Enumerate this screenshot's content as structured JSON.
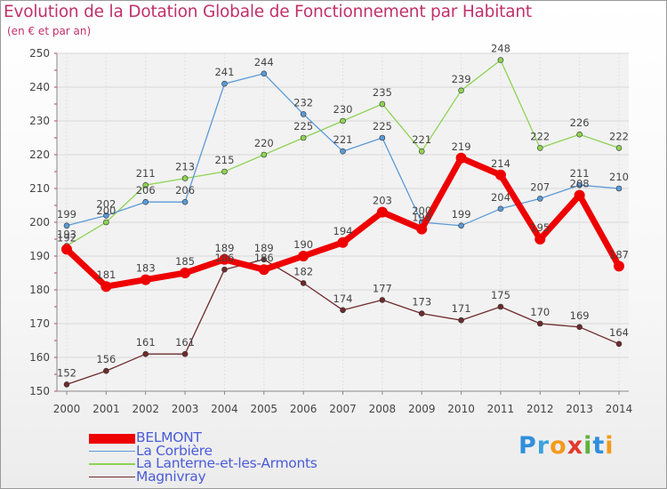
{
  "title": "Evolution de la Dotation Globale de Fonctionnement par Habitant",
  "subtitle": "(en € et par an)",
  "logo": {
    "text": "Proxiti",
    "letters": [
      "P",
      "r",
      "o",
      "x",
      "i",
      "t",
      "i"
    ],
    "colors": [
      "#2f8fdc",
      "#3aa3de",
      "#f39a1e",
      "#e23a2c",
      "#5bb33c",
      "#2f8fdc",
      "#f39a1e"
    ]
  },
  "chart_data": {
    "type": "line",
    "title": "Evolution de la Dotation Globale de Fonctionnement par Habitant",
    "subtitle": "(en € et par an)",
    "xlabel": "",
    "ylabel": "",
    "x": [
      "2000",
      "2001",
      "2002",
      "2003",
      "2004",
      "2005",
      "2006",
      "2007",
      "2008",
      "2009",
      "2010",
      "2011",
      "2012",
      "2013",
      "2014"
    ],
    "ylim": [
      150,
      250
    ],
    "yticks": [
      150,
      160,
      170,
      180,
      190,
      200,
      210,
      220,
      230,
      240,
      250
    ],
    "grid": true,
    "legend_position": "bottom-left",
    "series": [
      {
        "name": "BELMONT",
        "color": "#ee0000",
        "values": [
          192,
          181,
          183,
          185,
          189,
          186,
          190,
          194,
          203,
          198,
          219,
          214,
          195,
          208,
          187
        ]
      },
      {
        "name": "La Corbière",
        "color": "#5a9ad6",
        "values": [
          199,
          202,
          206,
          206,
          241,
          244,
          232,
          221,
          225,
          200,
          199,
          204,
          207,
          211,
          210
        ]
      },
      {
        "name": "La Lanterne-et-les-Armonts",
        "color": "#8ed354",
        "values": [
          193,
          200,
          211,
          213,
          215,
          220,
          225,
          230,
          235,
          221,
          239,
          248,
          222,
          226,
          222
        ]
      },
      {
        "name": "Magnivray",
        "color": "#6e2b2b",
        "values": [
          152,
          156,
          161,
          161,
          186,
          189,
          182,
          174,
          177,
          173,
          171,
          175,
          170,
          169,
          164
        ]
      }
    ]
  }
}
